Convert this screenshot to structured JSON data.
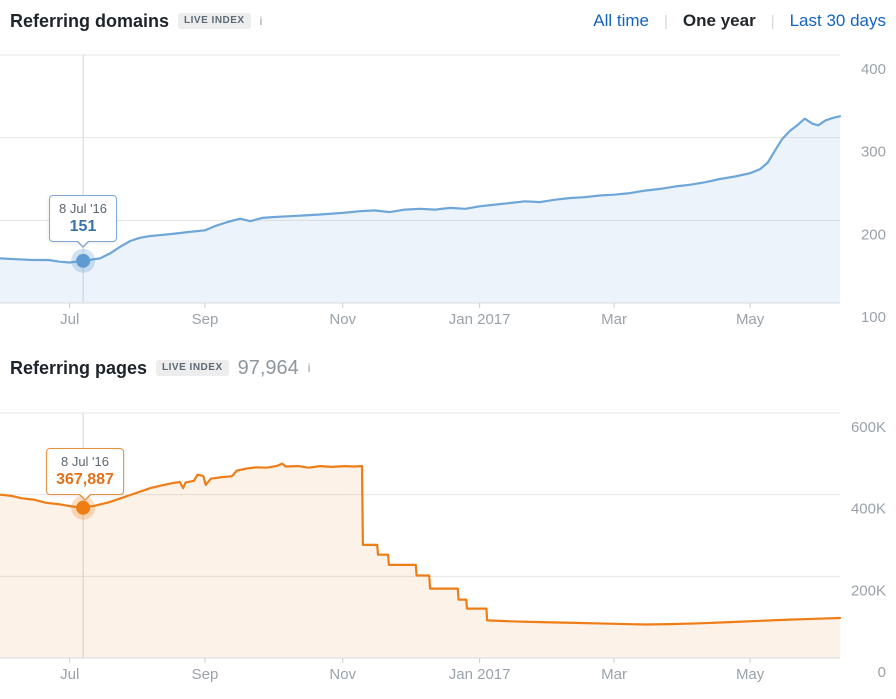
{
  "tabs": {
    "all_time": "All time",
    "one_year": "One year",
    "last_30": "Last 30 days",
    "separator": "|",
    "link_color": "#1364c1",
    "active_color": "#22272c"
  },
  "domains": {
    "title": "Referring domains",
    "badge": "LIVE INDEX",
    "info_icon": "i",
    "tooltip": {
      "date": "8 Jul '16",
      "value": "151"
    }
  },
  "pages": {
    "title": "Referring pages",
    "badge": "LIVE INDEX",
    "count": "97,964",
    "info_icon": "i",
    "tooltip": {
      "date": "8 Jul '16",
      "value": "367,887"
    }
  },
  "chart_data": [
    {
      "type": "area",
      "title": "Referring domains",
      "ylim": [
        100,
        400
      ],
      "grid": true,
      "line_color": "#6ea6d8",
      "fill_color": "rgba(110,166,216,0.13)",
      "marker_color": "#5e9bd3",
      "halo_color": "rgba(94,155,211,0.28)",
      "grid_color": "#e6e6e6",
      "axis_color": "#d9dbde",
      "tick_color": "#c9ccd0",
      "label_color": "#9aa2aa",
      "crosshair_color": "#d3d7da",
      "y_ticks": [
        {
          "value": 400,
          "label": "400"
        },
        {
          "value": 300,
          "label": "300"
        },
        {
          "value": 200,
          "label": "200"
        },
        {
          "value": 100,
          "label": "100"
        }
      ],
      "x_ticks": [
        {
          "pos": 0.083,
          "label": "Jul"
        },
        {
          "pos": 0.244,
          "label": "Sep"
        },
        {
          "pos": 0.408,
          "label": "Nov"
        },
        {
          "pos": 0.571,
          "label": "Jan 2017"
        },
        {
          "pos": 0.731,
          "label": "Mar"
        },
        {
          "pos": 0.893,
          "label": "May"
        }
      ],
      "marker": {
        "pos": 0.099,
        "value": 151,
        "date": "8 Jul '16"
      },
      "points": [
        [
          0,
          154
        ],
        [
          0.019,
          153
        ],
        [
          0.039,
          152
        ],
        [
          0.058,
          152
        ],
        [
          0.071,
          150
        ],
        [
          0.083,
          149
        ],
        [
          0.099,
          151
        ],
        [
          0.119,
          154
        ],
        [
          0.131,
          160
        ],
        [
          0.143,
          168
        ],
        [
          0.155,
          175
        ],
        [
          0.167,
          179
        ],
        [
          0.179,
          181
        ],
        [
          0.19,
          182
        ],
        [
          0.208,
          184
        ],
        [
          0.226,
          186
        ],
        [
          0.244,
          188
        ],
        [
          0.256,
          193
        ],
        [
          0.271,
          198
        ],
        [
          0.286,
          202
        ],
        [
          0.298,
          199
        ],
        [
          0.312,
          203
        ],
        [
          0.327,
          204
        ],
        [
          0.345,
          205
        ],
        [
          0.363,
          206
        ],
        [
          0.381,
          207
        ],
        [
          0.408,
          209
        ],
        [
          0.429,
          211
        ],
        [
          0.446,
          212
        ],
        [
          0.464,
          210
        ],
        [
          0.482,
          213
        ],
        [
          0.5,
          214
        ],
        [
          0.518,
          213
        ],
        [
          0.536,
          215
        ],
        [
          0.554,
          214
        ],
        [
          0.571,
          217
        ],
        [
          0.589,
          219
        ],
        [
          0.607,
          221
        ],
        [
          0.625,
          223
        ],
        [
          0.643,
          222
        ],
        [
          0.661,
          225
        ],
        [
          0.679,
          227
        ],
        [
          0.696,
          228
        ],
        [
          0.714,
          230
        ],
        [
          0.731,
          231
        ],
        [
          0.75,
          233
        ],
        [
          0.768,
          236
        ],
        [
          0.786,
          238
        ],
        [
          0.804,
          241
        ],
        [
          0.821,
          243
        ],
        [
          0.839,
          246
        ],
        [
          0.857,
          250
        ],
        [
          0.875,
          253
        ],
        [
          0.893,
          257
        ],
        [
          0.905,
          262
        ],
        [
          0.914,
          270
        ],
        [
          0.923,
          285
        ],
        [
          0.931,
          298
        ],
        [
          0.94,
          308
        ],
        [
          0.949,
          315
        ],
        [
          0.958,
          323
        ],
        [
          0.967,
          317
        ],
        [
          0.974,
          315
        ],
        [
          0.983,
          321
        ],
        [
          0.992,
          324
        ],
        [
          1,
          326
        ]
      ]
    },
    {
      "type": "area",
      "title": "Referring pages",
      "ylim": [
        0,
        600000
      ],
      "grid": true,
      "line_color": "#ee7d18",
      "fill_color": "rgba(238,125,24,0.10)",
      "marker_color": "#f07d12",
      "halo_color": "rgba(240,125,18,0.25)",
      "grid_color": "#e6e6e6",
      "axis_color": "#d9dbde",
      "tick_color": "#c9ccd0",
      "label_color": "#9aa2aa",
      "crosshair_color": "#d3d7da",
      "y_ticks": [
        {
          "value": 600000,
          "label": "600K"
        },
        {
          "value": 400000,
          "label": "400K"
        },
        {
          "value": 200000,
          "label": "200K"
        },
        {
          "value": 0,
          "label": "0"
        }
      ],
      "x_ticks": [
        {
          "pos": 0.083,
          "label": "Jul"
        },
        {
          "pos": 0.244,
          "label": "Sep"
        },
        {
          "pos": 0.408,
          "label": "Nov"
        },
        {
          "pos": 0.571,
          "label": "Jan 2017"
        },
        {
          "pos": 0.731,
          "label": "Mar"
        },
        {
          "pos": 0.893,
          "label": "May"
        }
      ],
      "marker": {
        "pos": 0.099,
        "value": 367887,
        "date": "8 Jul '16"
      },
      "points": [
        [
          0,
          400000
        ],
        [
          0.014,
          397000
        ],
        [
          0.026,
          391000
        ],
        [
          0.04,
          388000
        ],
        [
          0.055,
          380000
        ],
        [
          0.069,
          377000
        ],
        [
          0.083,
          372000
        ],
        [
          0.099,
          367887
        ],
        [
          0.113,
          373000
        ],
        [
          0.129,
          381000
        ],
        [
          0.145,
          392000
        ],
        [
          0.162,
          404000
        ],
        [
          0.179,
          416000
        ],
        [
          0.193,
          423000
        ],
        [
          0.205,
          428000
        ],
        [
          0.214,
          431000
        ],
        [
          0.218,
          416000
        ],
        [
          0.221,
          430000
        ],
        [
          0.231,
          434000
        ],
        [
          0.235,
          449000
        ],
        [
          0.242,
          446000
        ],
        [
          0.245,
          424000
        ],
        [
          0.251,
          439000
        ],
        [
          0.264,
          443000
        ],
        [
          0.276,
          445000
        ],
        [
          0.282,
          459000
        ],
        [
          0.294,
          464000
        ],
        [
          0.305,
          467000
        ],
        [
          0.317,
          466000
        ],
        [
          0.329,
          470000
        ],
        [
          0.336,
          476000
        ],
        [
          0.34,
          469000
        ],
        [
          0.355,
          470000
        ],
        [
          0.367,
          466000
        ],
        [
          0.381,
          470000
        ],
        [
          0.395,
          468000
        ],
        [
          0.41,
          470000
        ],
        [
          0.421,
          469000
        ],
        [
          0.431,
          470000
        ],
        [
          0.432,
          277000
        ],
        [
          0.449,
          277000
        ],
        [
          0.45,
          253000
        ],
        [
          0.462,
          253000
        ],
        [
          0.463,
          228000
        ],
        [
          0.495,
          228000
        ],
        [
          0.496,
          202000
        ],
        [
          0.511,
          202000
        ],
        [
          0.512,
          170000
        ],
        [
          0.545,
          170000
        ],
        [
          0.546,
          143000
        ],
        [
          0.555,
          143000
        ],
        [
          0.556,
          121000
        ],
        [
          0.579,
          121000
        ],
        [
          0.58,
          92000
        ],
        [
          0.607,
          90000
        ],
        [
          0.643,
          88000
        ],
        [
          0.685,
          86000
        ],
        [
          0.726,
          84000
        ],
        [
          0.768,
          82000
        ],
        [
          0.798,
          83000
        ],
        [
          0.833,
          85000
        ],
        [
          0.869,
          88000
        ],
        [
          0.905,
          91000
        ],
        [
          0.94,
          94000
        ],
        [
          0.97,
          96000
        ],
        [
          1,
          97964
        ]
      ]
    }
  ]
}
